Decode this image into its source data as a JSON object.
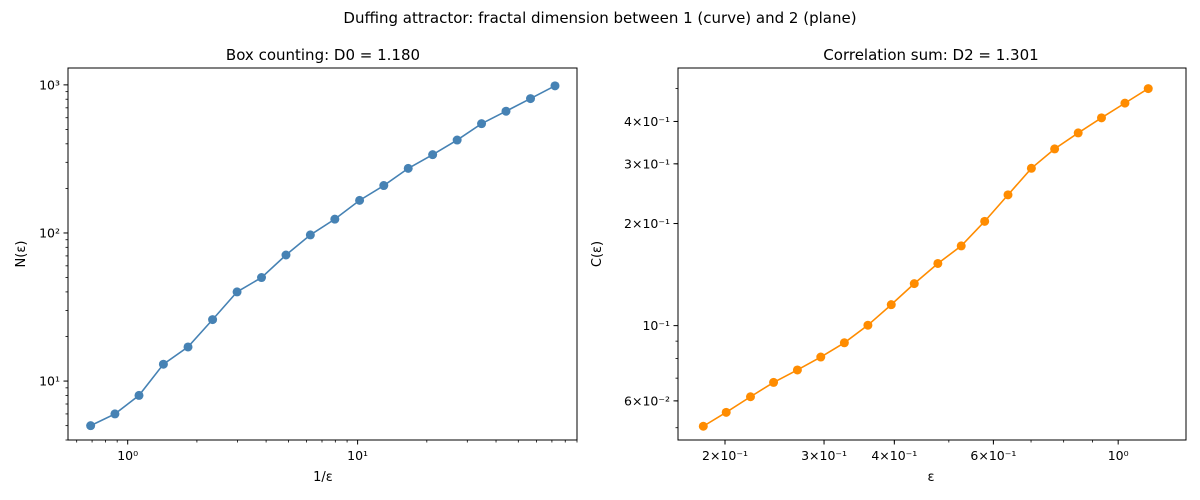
{
  "figure": {
    "suptitle": "Duffing attractor: fractal dimension between 1 (curve) and 2 (plane)"
  },
  "chart_data": [
    {
      "type": "line",
      "title": "Box counting: D0 = 1.180",
      "xlabel": "1/ε",
      "ylabel": "N(ε)",
      "xscale": "log",
      "yscale": "log",
      "xlim": [
        0.55,
        90
      ],
      "ylim": [
        4.0,
        1300
      ],
      "xticks": [
        {
          "value": 1,
          "label": "10⁰"
        },
        {
          "value": 10,
          "label": "10¹"
        }
      ],
      "yticks": [
        {
          "value": 10,
          "label": "10¹"
        },
        {
          "value": 100,
          "label": "10²"
        },
        {
          "value": 1000,
          "label": "10³"
        }
      ],
      "grid": false,
      "series": [
        {
          "color": "#4682b4",
          "marker": "circle",
          "x": [
            0.69,
            0.88,
            1.12,
            1.43,
            1.83,
            2.34,
            2.99,
            3.82,
            4.88,
            6.23,
            7.96,
            10.2,
            13.0,
            16.6,
            21.2,
            27.1,
            34.6,
            44.2,
            56.5,
            72.2
          ],
          "y": [
            5,
            6,
            8,
            13,
            17,
            26,
            40,
            50,
            71,
            97,
            124,
            166,
            209,
            273,
            338,
            424,
            547,
            664,
            808,
            985
          ]
        }
      ]
    },
    {
      "type": "line",
      "title": "Correlation sum: D2 = 1.301",
      "xlabel": "ε",
      "ylabel": "C(ε)",
      "xscale": "log",
      "yscale": "log",
      "xlim": [
        0.165,
        1.32
      ],
      "ylim": [
        0.046,
        0.575
      ],
      "xticks": [
        {
          "value": 0.2,
          "label": "2×10⁻¹"
        },
        {
          "value": 0.3,
          "label": "3×10⁻¹"
        },
        {
          "value": 0.4,
          "label": "4×10⁻¹"
        },
        {
          "value": 0.6,
          "label": "6×10⁻¹"
        },
        {
          "value": 1.0,
          "label": "10⁰"
        }
      ],
      "yticks": [
        {
          "value": 0.06,
          "label": "6×10⁻²"
        },
        {
          "value": 0.1,
          "label": "10⁻¹"
        },
        {
          "value": 0.2,
          "label": "2×10⁻¹"
        },
        {
          "value": 0.3,
          "label": "3×10⁻¹"
        },
        {
          "value": 0.4,
          "label": "4×10⁻¹"
        }
      ],
      "grid": false,
      "series": [
        {
          "color": "#ff8c00",
          "marker": "circle",
          "x": [
            0.183,
            0.201,
            0.222,
            0.244,
            0.269,
            0.296,
            0.326,
            0.359,
            0.395,
            0.434,
            0.478,
            0.526,
            0.579,
            0.637,
            0.701,
            0.771,
            0.849,
            0.934,
            1.028,
            1.131
          ],
          "y": [
            0.0505,
            0.0555,
            0.0617,
            0.068,
            0.074,
            0.0808,
            0.089,
            0.1003,
            0.1153,
            0.133,
            0.1525,
            0.1718,
            0.203,
            0.243,
            0.291,
            0.332,
            0.37,
            0.41,
            0.453,
            0.5
          ]
        }
      ]
    }
  ]
}
